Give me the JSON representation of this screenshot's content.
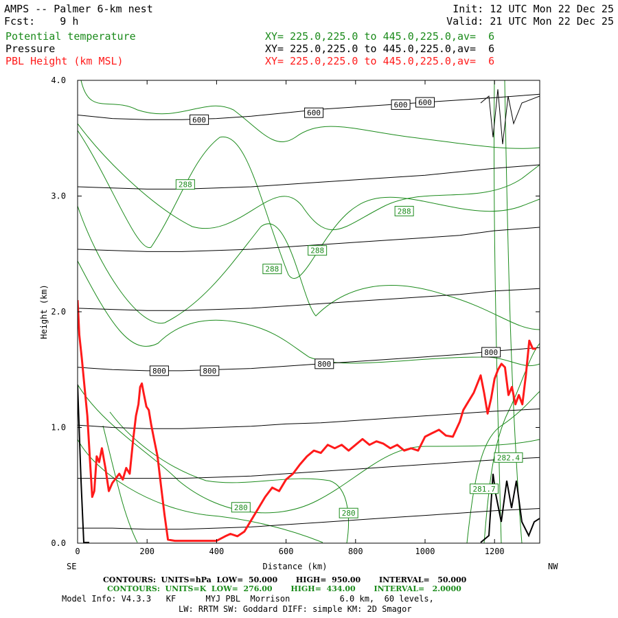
{
  "header": {
    "model_title": "AMPS -- Palmer 6-km nest",
    "forecast": "Fcst:    9 h",
    "init": "Init: 12 UTC Mon 22 Dec 25",
    "valid": "Valid: 21 UTC Mon 22 Dec 25",
    "fields": [
      {
        "name": "Potential temperature",
        "xy": "XY= 225.0,225.0 to 445.0,225.0,av=  6",
        "color": "#1a8a1a"
      },
      {
        "name": "Pressure",
        "xy": "XY= 225.0,225.0 to 445.0,225.0,av=  6",
        "color": "#000000"
      },
      {
        "name": "PBL Height (km MSL)",
        "xy": "XY= 225.0,225.0 to 445.0,225.0,av=  6",
        "color": "#ff1a1a"
      }
    ]
  },
  "footer": {
    "pressure_contours": "CONTOURS:  UNITS=hPa  LOW=  50.000       HIGH=  950.00       INTERVAL=   50.000",
    "theta_contours": "CONTOURS:  UNITS=K  LOW=  276.00       HIGH=  434.00       INTERVAL=   2.0000",
    "model_info": "Model Info: V4.3.3   KF      MYJ PBL  Morrison          6.0 km,  60 levels,",
    "model_info2": "LW: RRTM SW: Goddard DIFF: simple KM: 2D Smagor"
  },
  "chart_data": {
    "type": "line",
    "xlabel": "Distance (km)",
    "ylabel": "Height (km)",
    "xlim": [
      0,
      1330
    ],
    "ylim": [
      0,
      4.0
    ],
    "x_ticks": [
      "0",
      "200",
      "400",
      "600",
      "800",
      "1000",
      "1200"
    ],
    "y_ticks": [
      "0.0",
      "1.0",
      "2.0",
      "3.0",
      "4.0"
    ],
    "left_end_label": "SE",
    "right_end_label": "NW",
    "pbl_height": {
      "name": "PBL Height (km MSL)",
      "color": "#ff1a1a",
      "x": [
        0,
        5,
        12,
        20,
        28,
        36,
        42,
        48,
        55,
        62,
        70,
        80,
        90,
        100,
        110,
        120,
        130,
        140,
        150,
        160,
        168,
        175,
        180,
        185,
        190,
        198,
        205,
        212,
        220,
        230,
        240,
        250,
        260,
        280,
        300,
        350,
        400,
        425,
        440,
        460,
        480,
        500,
        520,
        540,
        560,
        580,
        600,
        620,
        640,
        660,
        680,
        700,
        720,
        740,
        760,
        780,
        800,
        820,
        840,
        860,
        880,
        900,
        920,
        940,
        960,
        980,
        1000,
        1020,
        1040,
        1060,
        1080,
        1100,
        1110,
        1120,
        1140,
        1160,
        1170,
        1180,
        1190,
        1200,
        1210,
        1220,
        1230,
        1240,
        1250,
        1260,
        1270,
        1280,
        1290,
        1300,
        1310,
        1320
      ],
      "y": [
        2.1,
        1.8,
        1.6,
        1.35,
        1.1,
        0.7,
        0.4,
        0.45,
        0.75,
        0.7,
        0.82,
        0.65,
        0.45,
        0.52,
        0.56,
        0.6,
        0.55,
        0.65,
        0.6,
        0.9,
        1.1,
        1.2,
        1.35,
        1.38,
        1.3,
        1.18,
        1.15,
        1.02,
        0.9,
        0.75,
        0.5,
        0.25,
        0.03,
        0.02,
        0.02,
        0.02,
        0.02,
        0.06,
        0.08,
        0.06,
        0.1,
        0.2,
        0.3,
        0.4,
        0.48,
        0.45,
        0.55,
        0.6,
        0.68,
        0.75,
        0.8,
        0.78,
        0.85,
        0.82,
        0.85,
        0.8,
        0.85,
        0.9,
        0.85,
        0.88,
        0.86,
        0.82,
        0.85,
        0.8,
        0.82,
        0.8,
        0.92,
        0.95,
        0.98,
        0.93,
        0.92,
        1.05,
        1.15,
        1.2,
        1.3,
        1.45,
        1.3,
        1.12,
        1.25,
        1.42,
        1.5,
        1.55,
        1.52,
        1.28,
        1.35,
        1.2,
        1.28,
        1.2,
        1.45,
        1.75,
        1.68,
        1.68
      ]
    },
    "pressure_levels": {
      "name": "Pressure",
      "units": "hPa",
      "color": "#000000",
      "x": [
        0,
        100,
        200,
        300,
        400,
        500,
        600,
        700,
        800,
        900,
        1000,
        1100,
        1200,
        1330
      ],
      "lines": [
        {
          "label": "600",
          "y": [
            3.7,
            3.67,
            3.66,
            3.66,
            3.67,
            3.69,
            3.72,
            3.75,
            3.77,
            3.79,
            3.81,
            3.83,
            3.85,
            3.88
          ]
        },
        {
          "label": "",
          "y": [
            3.08,
            3.07,
            3.06,
            3.06,
            3.07,
            3.08,
            3.1,
            3.12,
            3.14,
            3.16,
            3.18,
            3.21,
            3.24,
            3.27
          ]
        },
        {
          "label": "",
          "y": [
            2.54,
            2.53,
            2.52,
            2.52,
            2.53,
            2.54,
            2.56,
            2.58,
            2.6,
            2.62,
            2.64,
            2.66,
            2.7,
            2.73
          ]
        },
        {
          "label": "",
          "y": [
            2.03,
            2.02,
            2.01,
            2.01,
            2.02,
            2.03,
            2.05,
            2.07,
            2.09,
            2.11,
            2.13,
            2.15,
            2.18,
            2.2
          ]
        },
        {
          "label": "800",
          "y": [
            1.52,
            1.5,
            1.49,
            1.49,
            1.5,
            1.51,
            1.53,
            1.55,
            1.57,
            1.59,
            1.61,
            1.63,
            1.66,
            1.69
          ]
        },
        {
          "label": "",
          "y": [
            1.02,
            1.0,
            0.99,
            0.99,
            1.0,
            1.01,
            1.03,
            1.04,
            1.06,
            1.08,
            1.1,
            1.12,
            1.14,
            1.16
          ]
        },
        {
          "label": "",
          "y": [
            0.56,
            0.56,
            0.56,
            0.56,
            0.57,
            0.58,
            0.6,
            0.62,
            0.64,
            0.66,
            0.68,
            0.7,
            0.72,
            0.74
          ]
        },
        {
          "label": "",
          "y": [
            0.13,
            0.13,
            0.12,
            0.12,
            0.13,
            0.14,
            0.16,
            0.18,
            0.2,
            0.22,
            0.24,
            0.26,
            0.28,
            0.3
          ]
        }
      ],
      "box_labels": [
        {
          "text": "600",
          "x": 350,
          "y": 3.66
        },
        {
          "text": "600",
          "x": 680,
          "y": 3.72
        },
        {
          "text": "600",
          "x": 930,
          "y": 3.79
        },
        {
          "text": "600",
          "x": 1000,
          "y": 3.81
        },
        {
          "text": "800",
          "x": 235,
          "y": 1.49
        },
        {
          "text": "800",
          "x": 380,
          "y": 1.49
        },
        {
          "text": "800",
          "x": 710,
          "y": 1.55
        },
        {
          "text": "800",
          "x": 1190,
          "y": 1.65
        }
      ]
    },
    "potential_temperature": {
      "name": "Potential temperature",
      "units": "K",
      "color": "#1a8a1a",
      "box_labels": [
        {
          "text": "288",
          "x": 310,
          "y": 3.1
        },
        {
          "text": "288",
          "x": 560,
          "y": 2.37
        },
        {
          "text": "288",
          "x": 690,
          "y": 2.53
        },
        {
          "text": "288",
          "x": 940,
          "y": 2.87
        },
        {
          "text": "280",
          "x": 470,
          "y": 0.31
        },
        {
          "text": "280",
          "x": 780,
          "y": 0.26
        },
        {
          "text": "281.7",
          "x": 1170,
          "y": 0.47
        },
        {
          "text": "282.4",
          "x": 1240,
          "y": 0.74
        }
      ]
    }
  }
}
